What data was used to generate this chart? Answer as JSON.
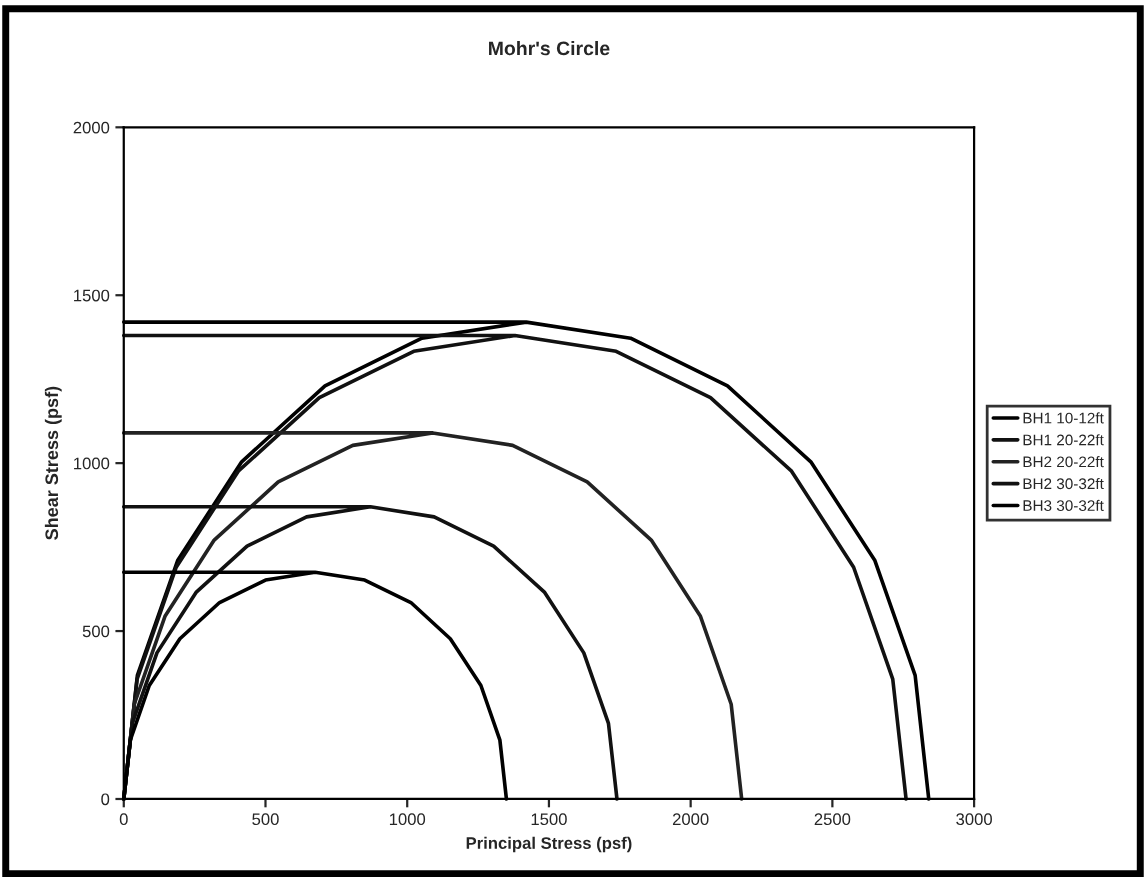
{
  "chart_data": {
    "type": "line",
    "title": "Mohr's Circle",
    "xlabel": "Principal Stress (psf)",
    "ylabel": "Shear Stress (psf)",
    "xlim": [
      0,
      3000
    ],
    "xticks": [
      0,
      500,
      1000,
      1500,
      2000,
      2500,
      3000
    ],
    "ylim": [
      0,
      2000
    ],
    "yticks": [
      0,
      500,
      1000,
      1500,
      2000
    ],
    "grid": false,
    "legend": "right",
    "marker": "none",
    "line_style": "solid",
    "series": [
      {
        "name": "BH1 10-12ft",
        "color": "#000000",
        "x": [
          0,
          1420,
          null,
          0,
          48,
          190,
          416,
          710,
          1052,
          1420,
          1788,
          2130,
          2424,
          2650,
          2792,
          2840
        ],
        "values": [
          1420,
          1420,
          null,
          0,
          368,
          710,
          1004,
          1230,
          1372,
          1420,
          1372,
          1230,
          1004,
          710,
          368,
          0
        ]
      },
      {
        "name": "BH1 20-22ft",
        "color": "#111111",
        "x": [
          0,
          1380,
          null,
          0,
          47,
          185,
          404,
          690,
          1023,
          1380,
          1737,
          2070,
          2356,
          2575,
          2713,
          2760
        ],
        "values": [
          1380,
          1380,
          null,
          0,
          357,
          690,
          976,
          1195,
          1333,
          1380,
          1333,
          1195,
          976,
          690,
          357,
          0
        ]
      },
      {
        "name": "BH2 20-22ft",
        "color": "#222222",
        "x": [
          0,
          1090,
          null,
          0,
          37,
          146,
          319,
          545,
          808,
          1090,
          1372,
          1635,
          1861,
          2034,
          2143,
          2180
        ],
        "values": [
          1090,
          1090,
          null,
          0,
          282,
          545,
          771,
          944,
          1053,
          1090,
          1053,
          944,
          771,
          545,
          282,
          0
        ]
      },
      {
        "name": "BH2 30-32ft",
        "color": "#111111",
        "x": [
          0,
          870,
          null,
          0,
          30,
          117,
          255,
          435,
          645,
          870,
          1095,
          1305,
          1485,
          1623,
          1710,
          1740
        ],
        "values": [
          870,
          870,
          null,
          0,
          225,
          435,
          615,
          753,
          840,
          870,
          840,
          753,
          615,
          435,
          225,
          0
        ]
      },
      {
        "name": "BH3 30-32ft",
        "color": "#000000",
        "x": [
          0,
          675,
          null,
          0,
          23,
          90,
          198,
          338,
          500,
          675,
          850,
          1013,
          1152,
          1260,
          1327,
          1350
        ],
        "values": [
          675,
          675,
          null,
          0,
          175,
          338,
          477,
          585,
          652,
          675,
          652,
          585,
          477,
          338,
          175,
          0
        ]
      }
    ]
  }
}
